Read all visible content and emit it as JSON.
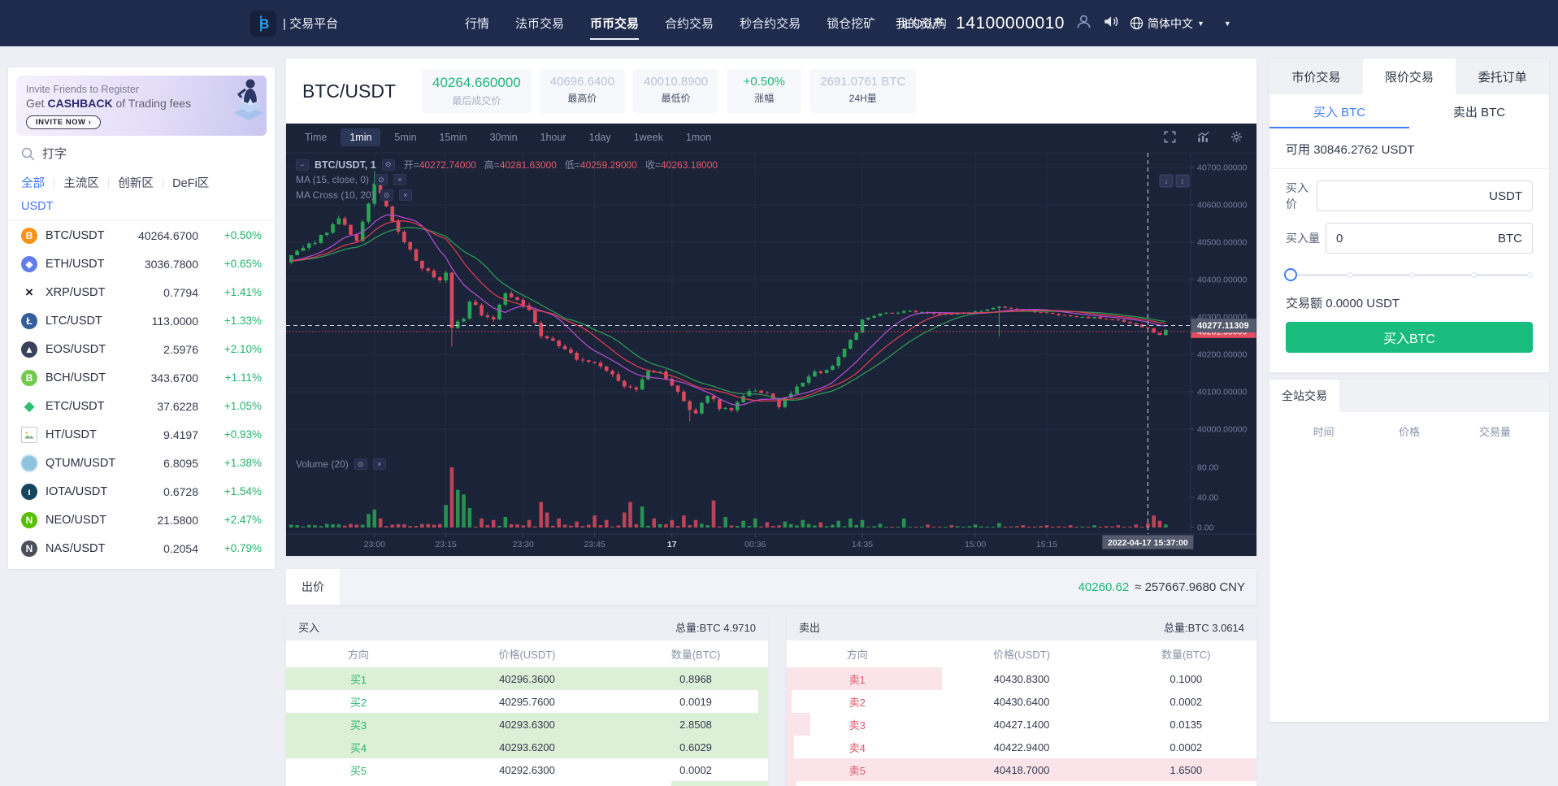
{
  "navbar": {
    "logo_text": "| 交易平台",
    "items": [
      "行情",
      "法币交易",
      "币币交易",
      "合约交易",
      "秒合约交易",
      "锁仓挖矿",
      "IEO认购"
    ],
    "active_item": "币币交易",
    "assets_label": "我的资产",
    "assets_value": "14100000010",
    "language": "简体中文"
  },
  "sidebar": {
    "banner": {
      "line1": "Invite Friends to Register",
      "line2_prefix": "Get ",
      "line2_bold": "CASHBACK",
      "line2_suffix": " of Trading fees",
      "button_label": "INVITE NOW ›"
    },
    "search_placeholder": "打字",
    "tabs": [
      "全部",
      "主流区",
      "创新区",
      "DeFi区"
    ],
    "active_tab": "全部",
    "quote_tab": "USDT",
    "coins": [
      {
        "symbol": "BTC/USDT",
        "price": "40264.6700",
        "change": "+0.50%",
        "icon_type": "circle",
        "icon_bg": "#f7931a",
        "icon_glyph": "B"
      },
      {
        "symbol": "ETH/USDT",
        "price": "3036.7800",
        "change": "+0.65%",
        "icon_type": "circle",
        "icon_bg": "#637eea",
        "icon_glyph": "◆"
      },
      {
        "symbol": "XRP/USDT",
        "price": "0.7794",
        "change": "+1.41%",
        "icon_type": "plain",
        "icon_bg": "#1b2026",
        "icon_glyph": "×"
      },
      {
        "symbol": "LTC/USDT",
        "price": "113.0000",
        "change": "+1.33%",
        "icon_type": "circle",
        "icon_bg": "#345d9d",
        "icon_glyph": "Ł"
      },
      {
        "symbol": "EOS/USDT",
        "price": "2.5976",
        "change": "+2.10%",
        "icon_type": "circle",
        "icon_bg": "#39415c",
        "icon_glyph": "▲"
      },
      {
        "symbol": "BCH/USDT",
        "price": "343.6700",
        "change": "+1.11%",
        "icon_type": "circle",
        "icon_bg": "#72ca4c",
        "icon_glyph": "B"
      },
      {
        "symbol": "ETC/USDT",
        "price": "37.6228",
        "change": "+1.05%",
        "icon_type": "plain",
        "icon_bg": "#2fbf71",
        "icon_glyph": "◆"
      },
      {
        "symbol": "HT/USDT",
        "price": "9.4197",
        "change": "+0.93%",
        "icon_type": "broken",
        "icon_bg": "#ffffff",
        "icon_glyph": ""
      },
      {
        "symbol": "QTUM/USDT",
        "price": "6.8095",
        "change": "+1.38%",
        "icon_type": "fuzzy",
        "icon_bg": "#8fc2dc",
        "icon_glyph": ""
      },
      {
        "symbol": "IOTA/USDT",
        "price": "0.6728",
        "change": "+1.54%",
        "icon_type": "circle",
        "icon_bg": "#15465f",
        "icon_glyph": "ι"
      },
      {
        "symbol": "NEO/USDT",
        "price": "21.5800",
        "change": "+2.47%",
        "icon_type": "circle",
        "icon_bg": "#58bf00",
        "icon_glyph": "N"
      },
      {
        "symbol": "NAS/USDT",
        "price": "0.2054",
        "change": "+0.79%",
        "icon_type": "circle",
        "icon_bg": "#4a4f58",
        "icon_glyph": "N"
      }
    ]
  },
  "market_header": {
    "pair": "BTC/USDT",
    "stats": [
      {
        "value": "40264.660000",
        "label": "最后成交价",
        "tone": "green",
        "primary": true
      },
      {
        "value": "40696.6400",
        "label": "最高价",
        "tone": "muted",
        "primary": false
      },
      {
        "value": "40010.8900",
        "label": "最低价",
        "tone": "muted",
        "primary": false
      },
      {
        "value": "+0.50%",
        "label": "涨幅",
        "tone": "green",
        "primary": false
      },
      {
        "value": "2691.0761 BTC",
        "label": "24H量",
        "tone": "muted",
        "primary": false
      }
    ]
  },
  "chart": {
    "timeframes": [
      "Time",
      "1min",
      "5min",
      "15min",
      "30min",
      "1hour",
      "1day",
      "1week",
      "1mon"
    ],
    "active_timeframe": "1min",
    "symbol_text": "BTC/USDT, 1",
    "ohlc": [
      {
        "k": "开=",
        "v": "40272.74000"
      },
      {
        "k": "高=",
        "v": "40281.63000"
      },
      {
        "k": "低=",
        "v": "40259.29000"
      },
      {
        "k": "收=",
        "v": "40263.18000"
      }
    ],
    "indicator1": "MA (15, close, 0)",
    "indicator2": "MA Cross (10, 20)",
    "volume_label": "Volume (20)",
    "price_ticks": [
      40700,
      40600,
      40500,
      40400,
      40300,
      40200,
      40100,
      40000
    ],
    "volume_ticks": [
      80,
      40,
      0
    ],
    "x_ticks": [
      {
        "label": "23:00",
        "i": 14
      },
      {
        "label": "23:15",
        "i": 26
      },
      {
        "label": "23:30",
        "i": 39
      },
      {
        "label": "23:45",
        "i": 51
      },
      {
        "label": "17",
        "i": 64
      },
      {
        "label": "00:36",
        "i": 78
      },
      {
        "label": "14:35",
        "i": 96
      },
      {
        "label": "15:00",
        "i": 115
      },
      {
        "label": "15:15",
        "i": 127
      }
    ],
    "crosshair": {
      "price": 40277.11,
      "price_label": "40277.11309",
      "time_label": "2022-04-17 15:37:00",
      "candle_index": 144
    },
    "last_price": 40261.35,
    "last_price_label": "40261.35000",
    "candle_count": 148,
    "colors": {
      "up": "#2ba356",
      "down": "#d8495e",
      "ma10": "#b84fd4",
      "ma15": "#e23d54",
      "ma20": "#2e9e57",
      "grid": "#232d45",
      "axis_text": "#71809f",
      "crosshair": "#cfd6e6",
      "label_bg": "#555b6e",
      "price_label_bg": "#e44d5f"
    },
    "waypoints": [
      [
        0,
        40465
      ],
      [
        4,
        40500
      ],
      [
        8,
        40560
      ],
      [
        11,
        40508
      ],
      [
        13,
        40600
      ],
      [
        14,
        40655
      ],
      [
        15,
        40635
      ],
      [
        17,
        40560
      ],
      [
        19,
        40505
      ],
      [
        22,
        40430
      ],
      [
        25,
        40400
      ],
      [
        26,
        40420
      ],
      [
        27,
        40265
      ],
      [
        29,
        40300
      ],
      [
        30,
        40345
      ],
      [
        32,
        40310
      ],
      [
        34,
        40290
      ],
      [
        36,
        40365
      ],
      [
        38,
        40350
      ],
      [
        40,
        40315
      ],
      [
        42,
        40250
      ],
      [
        45,
        40225
      ],
      [
        48,
        40190
      ],
      [
        51,
        40172
      ],
      [
        53,
        40160
      ],
      [
        56,
        40120
      ],
      [
        58,
        40105
      ],
      [
        60,
        40160
      ],
      [
        62,
        40150
      ],
      [
        64,
        40120
      ],
      [
        66,
        40070
      ],
      [
        68,
        40040
      ],
      [
        70,
        40090
      ],
      [
        72,
        40060
      ],
      [
        74,
        40055
      ],
      [
        76,
        40095
      ],
      [
        78,
        40105
      ],
      [
        80,
        40090
      ],
      [
        82,
        40065
      ],
      [
        84,
        40100
      ],
      [
        86,
        40120
      ],
      [
        88,
        40150
      ],
      [
        90,
        40160
      ],
      [
        92,
        40190
      ],
      [
        94,
        40240
      ],
      [
        95,
        40260
      ],
      [
        96,
        40295
      ],
      [
        99,
        40308
      ],
      [
        103,
        40315
      ],
      [
        107,
        40312
      ],
      [
        111,
        40305
      ],
      [
        115,
        40315
      ],
      [
        119,
        40328
      ],
      [
        123,
        40318
      ],
      [
        127,
        40312
      ],
      [
        131,
        40303
      ],
      [
        135,
        40298
      ],
      [
        139,
        40290
      ],
      [
        142,
        40280
      ],
      [
        144,
        40270
      ],
      [
        145,
        40258
      ],
      [
        146,
        40250
      ],
      [
        147,
        40266
      ]
    ],
    "volume_spikes": [
      [
        13,
        18
      ],
      [
        14,
        24
      ],
      [
        15,
        12
      ],
      [
        26,
        30
      ],
      [
        27,
        80
      ],
      [
        28,
        50
      ],
      [
        29,
        44
      ],
      [
        30,
        26
      ],
      [
        32,
        12
      ],
      [
        34,
        10
      ],
      [
        36,
        14
      ],
      [
        40,
        10
      ],
      [
        42,
        34
      ],
      [
        43,
        20
      ],
      [
        45,
        12
      ],
      [
        48,
        8
      ],
      [
        51,
        16
      ],
      [
        53,
        10
      ],
      [
        56,
        20
      ],
      [
        57,
        34
      ],
      [
        59,
        28
      ],
      [
        61,
        12
      ],
      [
        64,
        10
      ],
      [
        66,
        16
      ],
      [
        68,
        10
      ],
      [
        71,
        36
      ],
      [
        73,
        14
      ],
      [
        76,
        9
      ],
      [
        78,
        12
      ],
      [
        80,
        7
      ],
      [
        83,
        8
      ],
      [
        86,
        10
      ],
      [
        89,
        7
      ],
      [
        92,
        9
      ],
      [
        94,
        12
      ],
      [
        96,
        10
      ],
      [
        99,
        5
      ],
      [
        103,
        12
      ],
      [
        107,
        4
      ],
      [
        111,
        3
      ],
      [
        115,
        4
      ],
      [
        119,
        6
      ],
      [
        123,
        3
      ],
      [
        127,
        3
      ],
      [
        131,
        3
      ],
      [
        135,
        3
      ],
      [
        139,
        3
      ],
      [
        142,
        4
      ],
      [
        144,
        6
      ],
      [
        145,
        16
      ],
      [
        146,
        9
      ],
      [
        147,
        4
      ]
    ],
    "wick_events": [
      [
        14,
        30,
        0
      ],
      [
        27,
        0,
        45
      ],
      [
        67,
        0,
        25
      ],
      [
        119,
        0,
        75
      ]
    ]
  },
  "quote_bar": {
    "tab": "出价",
    "price": "40260.62",
    "approx": "≈ 257667.9680 CNY"
  },
  "orderbook": {
    "buy": {
      "title": "买入",
      "total": "总量:BTC 4.9710",
      "columns": [
        "方向",
        "价格(USDT)",
        "数量(BTC)"
      ],
      "rows": [
        {
          "dir": "买1",
          "price": "40296.3600",
          "amount": "0.8968",
          "depth": 100
        },
        {
          "dir": "买2",
          "price": "40295.7600",
          "amount": "0.0019",
          "depth": 2
        },
        {
          "dir": "买3",
          "price": "40293.6300",
          "amount": "2.8508",
          "depth": 100
        },
        {
          "dir": "买4",
          "price": "40293.6200",
          "amount": "0.6029",
          "depth": 100
        },
        {
          "dir": "买5",
          "price": "40292.6300",
          "amount": "0.0002",
          "depth": 0
        },
        {
          "dir": "",
          "price": "",
          "amount": "",
          "depth": 20
        }
      ]
    },
    "sell": {
      "title": "卖出",
      "total": "总量:BTC 3.0614",
      "columns": [
        "方向",
        "价格(USDT)",
        "数量(BTC)"
      ],
      "rows": [
        {
          "dir": "卖1",
          "price": "40430.8300",
          "amount": "0.1000",
          "depth": 33
        },
        {
          "dir": "卖2",
          "price": "40430.6400",
          "amount": "0.0002",
          "depth": 1
        },
        {
          "dir": "卖3",
          "price": "40427.1400",
          "amount": "0.0135",
          "depth": 5
        },
        {
          "dir": "卖4",
          "price": "40422.9400",
          "amount": "0.0002",
          "depth": 1.5
        },
        {
          "dir": "卖5",
          "price": "40418.7000",
          "amount": "1.6500",
          "depth": 100
        },
        {
          "dir": "",
          "price": "",
          "amount": "",
          "depth": 2
        }
      ]
    }
  },
  "ticket": {
    "tabs": [
      "市价交易",
      "限价交易",
      "委托订单"
    ],
    "active_tab": "限价交易",
    "side_tabs": [
      "买入 BTC",
      "卖出 BTC"
    ],
    "active_side": "买入 BTC",
    "available_label": "可用",
    "available_value": "30846.2762 USDT",
    "price_label": "买入价",
    "price_value": "",
    "price_unit": "USDT",
    "amount_label": "买入量",
    "amount_value": "0",
    "amount_unit": "BTC",
    "total_label": "交易额",
    "total_value": "0.0000 USDT",
    "submit_label": "买入BTC"
  },
  "site_trades": {
    "tab": "全站交易",
    "columns": [
      "时间",
      "价格",
      "交易量"
    ]
  }
}
